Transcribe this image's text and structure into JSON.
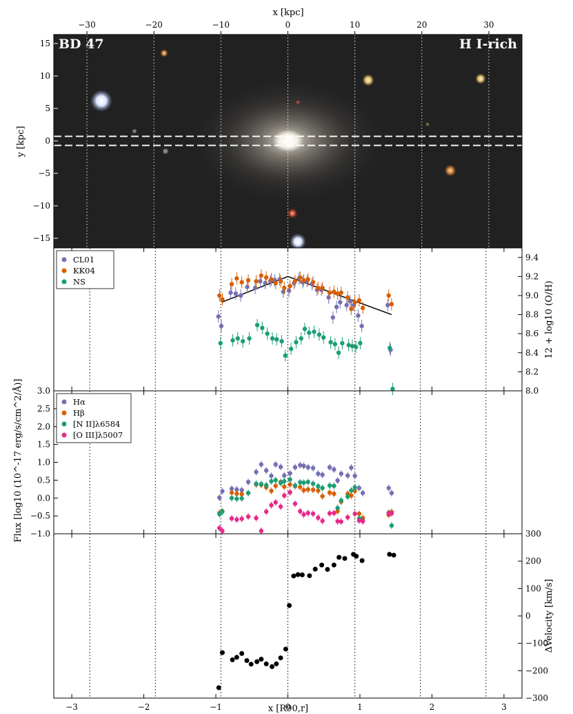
{
  "image_panel": {
    "left_label": "BD 47",
    "right_label": "H I-rich",
    "top_axis_label": "x [kpc]",
    "y_axis_label": "y [kpc]",
    "top_ticks": [
      -30,
      -20,
      -10,
      0,
      10,
      20,
      30
    ],
    "y_ticks": [
      15,
      10,
      5,
      0,
      -5,
      -10,
      -15
    ],
    "slit_halfwidth_kpc": 0.7,
    "vertical_lines_kpc": [
      -30,
      -20,
      -10,
      0,
      10,
      20,
      30
    ]
  },
  "shared_x": {
    "label": "x [R90,r]",
    "ticks": [
      -3,
      -2,
      -1,
      0,
      1,
      2,
      3
    ],
    "xlim": [
      -3.25,
      3.25
    ],
    "vertical_lines": [
      -2.75,
      -1.84,
      -0.93,
      0,
      0.93,
      1.84,
      2.75
    ]
  },
  "colors": {
    "purple": "#7570b3",
    "orange": "#d95f02",
    "green": "#1b9e77",
    "pink": "#e7298a",
    "black": "#000000"
  },
  "chart_data": [
    {
      "type": "scatter",
      "panel": "metallicity",
      "ylabel": "12 + log10 (O/H)",
      "ylim": [
        8.0,
        9.5
      ],
      "y_ticks": [
        "8.0",
        "8.2",
        "8.4",
        "8.6",
        "8.8",
        "9.0",
        "9.2",
        "9.4"
      ],
      "x": [
        -0.95,
        -0.91,
        -0.78,
        -0.71,
        -0.64,
        -0.55,
        -0.44,
        -0.37,
        -0.3,
        -0.23,
        -0.17,
        -0.1,
        -0.05,
        0.03,
        0.1,
        0.17,
        0.22,
        0.28,
        0.35,
        0.42,
        0.48,
        0.58,
        0.64,
        0.69,
        0.74,
        0.83,
        0.88,
        0.93,
        0.99,
        1.04,
        1.4,
        1.44
      ],
      "series": [
        {
          "name": "CL01",
          "color": "#7570b3",
          "values": [
            8.78,
            8.68,
            9.03,
            9.02,
            9.0,
            9.09,
            9.08,
            9.15,
            9.13,
            9.15,
            9.16,
            9.17,
            9.04,
            9.05,
            9.13,
            9.18,
            9.14,
            9.15,
            9.12,
            9.06,
            9.06,
            8.98,
            8.77,
            8.88,
            8.93,
            8.9,
            8.94,
            8.9,
            8.79,
            8.68,
            8.9,
            8.43
          ]
        },
        {
          "name": "KK04",
          "color": "#d95f02",
          "values": [
            9.0,
            8.96,
            9.12,
            9.18,
            9.14,
            9.16,
            9.15,
            9.21,
            9.19,
            9.17,
            9.13,
            9.15,
            9.08,
            9.1,
            9.15,
            9.19,
            9.16,
            9.17,
            9.14,
            9.08,
            9.08,
            9.03,
            9.04,
            9.02,
            9.03,
            8.98,
            8.86,
            8.93,
            8.95,
            8.87,
            9.0,
            8.91
          ]
        },
        {
          "name": "NS",
          "color": "#1b9e77",
          "values": [
            8.5,
            null,
            8.53,
            8.55,
            8.52,
            8.55,
            8.69,
            8.66,
            8.6,
            8.55,
            8.54,
            8.52,
            8.37,
            8.44,
            8.51,
            8.55,
            8.65,
            8.61,
            8.62,
            8.59,
            8.56,
            8.51,
            8.49,
            8.4,
            8.5,
            8.48,
            8.47,
            8.46,
            8.5,
            null,
            8.45,
            8.02
          ]
        }
      ],
      "fit_line": {
        "x": [
          -0.92,
          0.0,
          1.44
        ],
        "y": [
          8.93,
          9.2,
          8.8
        ]
      }
    },
    {
      "type": "scatter",
      "panel": "flux",
      "ylabel": "Flux [log10 (10^-17 erg/s/cm^2/Å)]",
      "ylim": [
        -1.0,
        3.0
      ],
      "y_ticks": [
        "-1.0",
        "-0.5",
        "0.0",
        "0.5",
        "1.0",
        "1.5",
        "2.0",
        "2.5",
        "3.0"
      ],
      "x": [
        -0.95,
        -0.91,
        -0.78,
        -0.71,
        -0.64,
        -0.55,
        -0.44,
        -0.37,
        -0.3,
        -0.23,
        -0.17,
        -0.1,
        -0.05,
        0.03,
        0.1,
        0.17,
        0.22,
        0.28,
        0.35,
        0.42,
        0.48,
        0.58,
        0.64,
        0.69,
        0.74,
        0.83,
        0.88,
        0.93,
        0.99,
        1.04,
        1.4,
        1.44
      ],
      "series": [
        {
          "name": "Hα",
          "color": "#7570b3",
          "values": [
            0.01,
            0.19,
            0.26,
            0.24,
            0.22,
            0.45,
            0.73,
            0.94,
            0.77,
            0.62,
            0.94,
            0.87,
            0.63,
            0.69,
            0.86,
            0.92,
            0.9,
            0.86,
            0.84,
            0.68,
            0.65,
            0.86,
            0.8,
            0.49,
            0.68,
            0.63,
            0.85,
            0.62,
            0.28,
            0.14,
            0.28,
            0.14
          ]
        },
        {
          "name": "Hβ",
          "color": "#d95f02",
          "values": [
            -0.42,
            -0.37,
            0.15,
            0.12,
            0.11,
            0.14,
            0.38,
            0.37,
            0.3,
            0.2,
            0.34,
            0.45,
            0.32,
            0.38,
            0.33,
            0.31,
            0.22,
            0.24,
            0.23,
            0.21,
            0.05,
            0.15,
            0.12,
            -0.37,
            -0.1,
            0.12,
            0.07,
            0.2,
            -0.44,
            -0.56,
            -0.47,
            -0.39
          ]
        },
        {
          "name": "[N II]λ6584",
          "color": "#1b9e77",
          "values": [
            -0.45,
            -0.38,
            0.0,
            -0.02,
            -0.01,
            0.14,
            0.4,
            0.39,
            0.36,
            0.47,
            0.5,
            0.42,
            0.47,
            0.52,
            0.35,
            0.44,
            0.43,
            0.45,
            0.4,
            0.33,
            0.28,
            0.35,
            0.34,
            -0.28,
            -0.07,
            0.04,
            0.21,
            0.3,
            -0.57,
            -0.63,
            -0.41,
            -0.77
          ]
        },
        {
          "name": "[O III]λ5007",
          "color": "#e7298a",
          "values": [
            -0.84,
            -0.92,
            -0.57,
            -0.6,
            -0.58,
            -0.52,
            -0.56,
            -0.92,
            -0.38,
            -0.2,
            -0.12,
            -0.24,
            0.07,
            0.16,
            -0.16,
            -0.37,
            -0.46,
            -0.42,
            -0.44,
            -0.55,
            -0.64,
            -0.43,
            -0.42,
            -0.65,
            -0.66,
            -0.54,
            null,
            -0.44,
            -0.63,
            -0.65,
            -0.43,
            -0.43
          ]
        }
      ]
    },
    {
      "type": "scatter",
      "panel": "velocity",
      "ylabel": "ΔVelocity [km/s]",
      "ylim": [
        -300,
        300
      ],
      "y_ticks": [
        "-300",
        "-200",
        "-100",
        "0",
        "100",
        "200",
        "300"
      ],
      "series": [
        {
          "name": "",
          "color": "#000000",
          "x": [
            -0.96,
            -0.91,
            -0.77,
            -0.71,
            -0.64,
            -0.57,
            -0.51,
            -0.43,
            -0.37,
            -0.3,
            -0.22,
            -0.16,
            -0.1,
            -0.03,
            0.02,
            0.08,
            0.14,
            0.2,
            0.3,
            0.38,
            0.47,
            0.55,
            0.64,
            0.71,
            0.79,
            0.91,
            0.95,
            1.03,
            1.41,
            1.47
          ],
          "values": [
            -262,
            -134,
            -160,
            -151,
            -137,
            -163,
            -176,
            -167,
            -158,
            -175,
            -185,
            -175,
            -153,
            -121,
            38,
            146,
            151,
            150,
            147,
            171,
            186,
            170,
            186,
            214,
            210,
            225,
            218,
            202,
            225,
            222
          ]
        }
      ]
    }
  ]
}
